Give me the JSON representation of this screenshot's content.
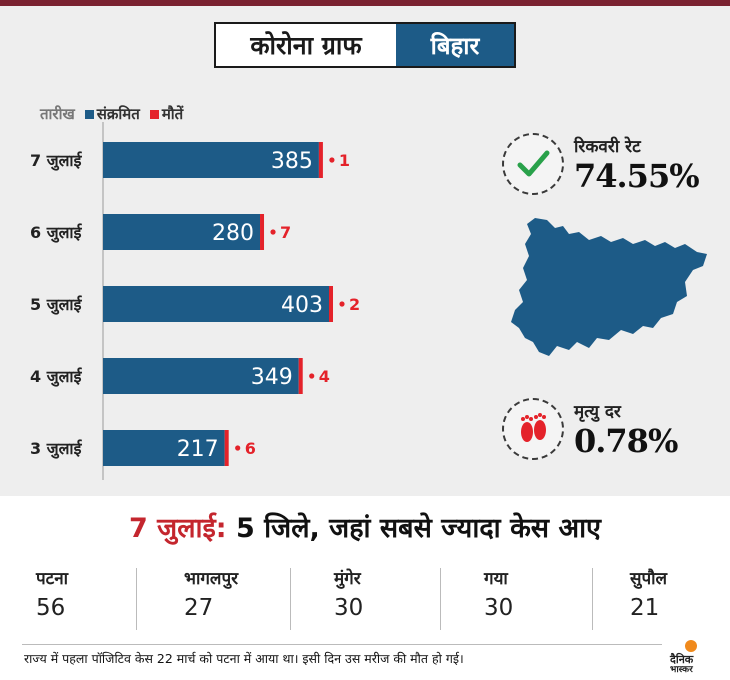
{
  "title": {
    "left": "कोरोना ग्राफ",
    "right": "बिहार"
  },
  "legend": {
    "axis": "तारीख",
    "infected": "संक्रमित",
    "deaths": "मौतें"
  },
  "colors": {
    "infected": "#1d5b87",
    "deaths": "#e4222a",
    "accent_red": "#c4262e",
    "map": "#1d5b87",
    "check": "#29a14a"
  },
  "chart_data": {
    "type": "bar",
    "orientation": "horizontal",
    "categories": [
      "7 जुलाई",
      "6 जुलाई",
      "5 जुलाई",
      "4 जुलाई",
      "3 जुलाई"
    ],
    "series": [
      {
        "name": "संक्रमित",
        "values": [
          385,
          280,
          403,
          349,
          217
        ]
      },
      {
        "name": "मौतें",
        "values": [
          1,
          7,
          2,
          4,
          6
        ]
      }
    ],
    "xlim": [
      0,
      403
    ]
  },
  "recovery": {
    "label": "रिकवरी रेट",
    "value": "74.55%",
    "icon": "check-icon"
  },
  "mortality": {
    "label": "मृत्यु दर",
    "value": "0.78%",
    "icon": "footprints-icon"
  },
  "headline": {
    "date": "7 जुलाई:",
    "text": " 5 जिले, जहां सबसे ज्यादा केस आए"
  },
  "districts": [
    {
      "name": "पटना",
      "value": "56"
    },
    {
      "name": "भागलपुर",
      "value": "27"
    },
    {
      "name": "मुंगेर",
      "value": "30"
    },
    {
      "name": "गया",
      "value": "30"
    },
    {
      "name": "सुपौल",
      "value": "21"
    }
  ],
  "footnote": "राज्य में पहला पॉजिटिव केस 22 मार्च को पटना में आया था। इसी दिन उस मरीज की मौत हो गई।",
  "logo": {
    "line1": "दैनिक",
    "line2": "भास्कर"
  }
}
